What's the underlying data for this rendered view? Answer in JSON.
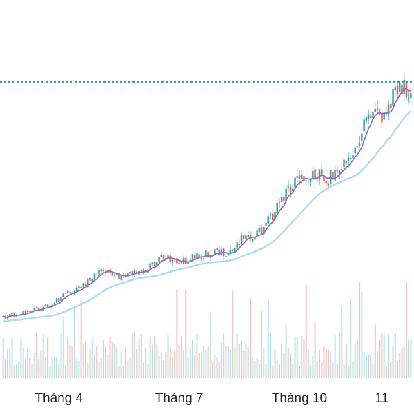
{
  "colors": {
    "up": "#26a69a",
    "down": "#ef5350",
    "ma_short": "#8e6cc0",
    "ma_long": "#a9dcf3",
    "reference_line": "#0f8a8a",
    "volume_up": "#b2dfdb",
    "volume_down": "#f7b9b6",
    "text": "#222222",
    "background": "#ffffff"
  },
  "chart_data": {
    "type": "candlestick",
    "title": "",
    "xlabel": "",
    "ylabel": "",
    "x_ticks": [
      {
        "label": "Tháng 4",
        "index": 25
      },
      {
        "label": "Tháng 7",
        "index": 79
      },
      {
        "label": "Tháng 10",
        "index": 133
      },
      {
        "label": "11",
        "index": 170
      }
    ],
    "y_range": [
      0.0,
      1.0
    ],
    "reference_line": {
      "value": 0.895,
      "style": "dashed"
    },
    "moving_averages": [
      "short",
      "long"
    ],
    "grid": false,
    "volume": {
      "shown": true,
      "position": "bottom"
    },
    "trend_anchors": [
      [
        0,
        0.022
      ],
      [
        10,
        0.042
      ],
      [
        20,
        0.065
      ],
      [
        30,
        0.115
      ],
      [
        36,
        0.138
      ],
      [
        44,
        0.205
      ],
      [
        52,
        0.17
      ],
      [
        64,
        0.195
      ],
      [
        72,
        0.245
      ],
      [
        80,
        0.225
      ],
      [
        90,
        0.255
      ],
      [
        100,
        0.265
      ],
      [
        108,
        0.315
      ],
      [
        116,
        0.34
      ],
      [
        124,
        0.44
      ],
      [
        130,
        0.515
      ],
      [
        136,
        0.54
      ],
      [
        140,
        0.55
      ],
      [
        146,
        0.535
      ],
      [
        150,
        0.575
      ],
      [
        156,
        0.64
      ],
      [
        162,
        0.725
      ],
      [
        166,
        0.78
      ],
      [
        170,
        0.78
      ],
      [
        176,
        0.845
      ],
      [
        180,
        0.87
      ]
    ]
  }
}
